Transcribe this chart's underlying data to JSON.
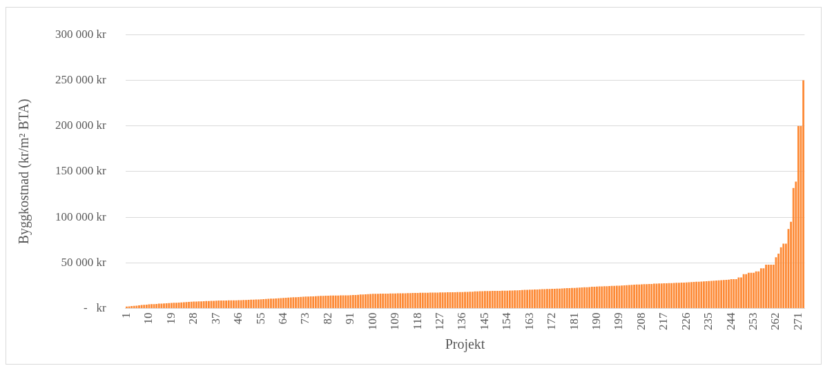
{
  "chart_data": {
    "type": "bar",
    "xlabel": "Projekt",
    "ylabel": "Byggkostnad (kr/m² BTA)",
    "categories": [
      "1",
      null,
      null,
      null,
      null,
      null,
      null,
      null,
      null,
      "10",
      null,
      null,
      null,
      null,
      null,
      null,
      null,
      null,
      "19",
      null,
      null,
      null,
      null,
      null,
      null,
      null,
      null,
      "28",
      null,
      null,
      null,
      null,
      null,
      null,
      null,
      null,
      "37",
      null,
      null,
      null,
      null,
      null,
      null,
      null,
      null,
      "46",
      null,
      null,
      null,
      null,
      null,
      null,
      null,
      null,
      "55",
      null,
      null,
      null,
      null,
      null,
      null,
      null,
      null,
      "64",
      null,
      null,
      null,
      null,
      null,
      null,
      null,
      null,
      "73",
      null,
      null,
      null,
      null,
      null,
      null,
      null,
      null,
      "82",
      null,
      null,
      null,
      null,
      null,
      null,
      null,
      null,
      "91",
      null,
      null,
      null,
      null,
      null,
      null,
      null,
      null,
      "100",
      null,
      null,
      null,
      null,
      null,
      null,
      null,
      null,
      "109",
      null,
      null,
      null,
      null,
      null,
      null,
      null,
      null,
      "118",
      null,
      null,
      null,
      null,
      null,
      null,
      null,
      null,
      "127",
      null,
      null,
      null,
      null,
      null,
      null,
      null,
      null,
      "136",
      null,
      null,
      null,
      null,
      null,
      null,
      null,
      null,
      "145",
      null,
      null,
      null,
      null,
      null,
      null,
      null,
      null,
      "154",
      null,
      null,
      null,
      null,
      null,
      null,
      null,
      null,
      "163",
      null,
      null,
      null,
      null,
      null,
      null,
      null,
      null,
      "172",
      null,
      null,
      null,
      null,
      null,
      null,
      null,
      null,
      "181",
      null,
      null,
      null,
      null,
      null,
      null,
      null,
      null,
      "190",
      null,
      null,
      null,
      null,
      null,
      null,
      null,
      null,
      "199",
      null,
      null,
      null,
      null,
      null,
      null,
      null,
      null,
      "208",
      null,
      null,
      null,
      null,
      null,
      null,
      null,
      null,
      "217",
      null,
      null,
      null,
      null,
      null,
      null,
      null,
      null,
      "226",
      null,
      null,
      null,
      null,
      null,
      null,
      null,
      null,
      "235",
      null,
      null,
      null,
      null,
      null,
      null,
      null,
      null,
      "244",
      null,
      null,
      null,
      null,
      null,
      null,
      null,
      null,
      "253",
      null,
      null,
      null,
      null,
      null,
      null,
      null,
      null,
      "262",
      null,
      null,
      null,
      null,
      null,
      null,
      null,
      null,
      "271",
      null,
      null
    ],
    "values": [
      2000,
      2300,
      2600,
      2800,
      3100,
      3400,
      3700,
      3900,
      4200,
      4500,
      4700,
      4800,
      5000,
      5200,
      5300,
      5500,
      5700,
      5800,
      6000,
      6200,
      6300,
      6500,
      6700,
      6800,
      7000,
      7200,
      7300,
      7500,
      7600,
      7700,
      7800,
      7900,
      8100,
      8200,
      8300,
      8400,
      8500,
      8600,
      8600,
      8700,
      8700,
      8800,
      8800,
      8900,
      8900,
      9000,
      9100,
      9200,
      9300,
      9400,
      9600,
      9700,
      9800,
      9900,
      10000,
      10200,
      10300,
      10500,
      10700,
      10800,
      11000,
      11200,
      11300,
      11500,
      11700,
      11800,
      12000,
      12200,
      12300,
      12500,
      12700,
      12800,
      13000,
      13100,
      13200,
      13300,
      13400,
      13600,
      13700,
      13800,
      13900,
      14000,
      14100,
      14100,
      14200,
      14200,
      14300,
      14300,
      14400,
      14400,
      14500,
      14700,
      14800,
      15000,
      15200,
      15300,
      15500,
      15700,
      15800,
      16000,
      16100,
      16100,
      16200,
      16200,
      16300,
      16300,
      16400,
      16400,
      16500,
      16600,
      16600,
      16700,
      16700,
      16800,
      16800,
      16900,
      16900,
      17000,
      17100,
      17100,
      17200,
      17200,
      17300,
      17300,
      17400,
      17400,
      17500,
      17600,
      17600,
      17700,
      17700,
      17800,
      17800,
      17900,
      17900,
      18000,
      18100,
      18200,
      18300,
      18400,
      18600,
      18700,
      18800,
      18900,
      19000,
      19100,
      19100,
      19200,
      19200,
      19300,
      19300,
      19400,
      19400,
      19500,
      19600,
      19700,
      19800,
      19900,
      20100,
      20200,
      20300,
      20400,
      20500,
      20600,
      20700,
      20800,
      20900,
      21100,
      21200,
      21300,
      21400,
      21500,
      21600,
      21700,
      21800,
      21900,
      22100,
      22200,
      22300,
      22400,
      22500,
      22700,
      22800,
      23000,
      23200,
      23300,
      23500,
      23700,
      23800,
      24000,
      24100,
      24200,
      24300,
      24400,
      24600,
      24700,
      24800,
      24900,
      25000,
      25200,
      25300,
      25500,
      25700,
      25800,
      26000,
      26200,
      26300,
      26500,
      26600,
      26700,
      26800,
      26900,
      27100,
      27200,
      27300,
      27400,
      27500,
      27600,
      27700,
      27800,
      27900,
      28100,
      28200,
      28300,
      28400,
      28500,
      28700,
      28800,
      29000,
      29200,
      29300,
      29500,
      29700,
      29800,
      30000,
      30200,
      30400,
      30600,
      30800,
      31000,
      31200,
      31400,
      31600,
      32000,
      32000,
      32000,
      34000,
      34000,
      37500,
      37500,
      39000,
      39000,
      39000,
      40500,
      40500,
      44000,
      44000,
      48000,
      48000,
      48000,
      48000,
      56000,
      60000,
      67000,
      71000,
      71000,
      87000,
      95000,
      132000,
      139000,
      200000,
      200000,
      250000
    ],
    "color": "#fd8a36",
    "ylim": [
      0,
      300000
    ],
    "yticks": [
      {
        "value": 0,
        "label": "-   kr"
      },
      {
        "value": 50000,
        "label": "50 000 kr"
      },
      {
        "value": 100000,
        "label": "100 000 kr"
      },
      {
        "value": 150000,
        "label": "150 000 kr"
      },
      {
        "value": 200000,
        "label": "200 000 kr"
      },
      {
        "value": 250000,
        "label": "250 000 kr"
      },
      {
        "value": 300000,
        "label": "300 000 kr"
      }
    ],
    "grid": "y",
    "legend": false
  }
}
